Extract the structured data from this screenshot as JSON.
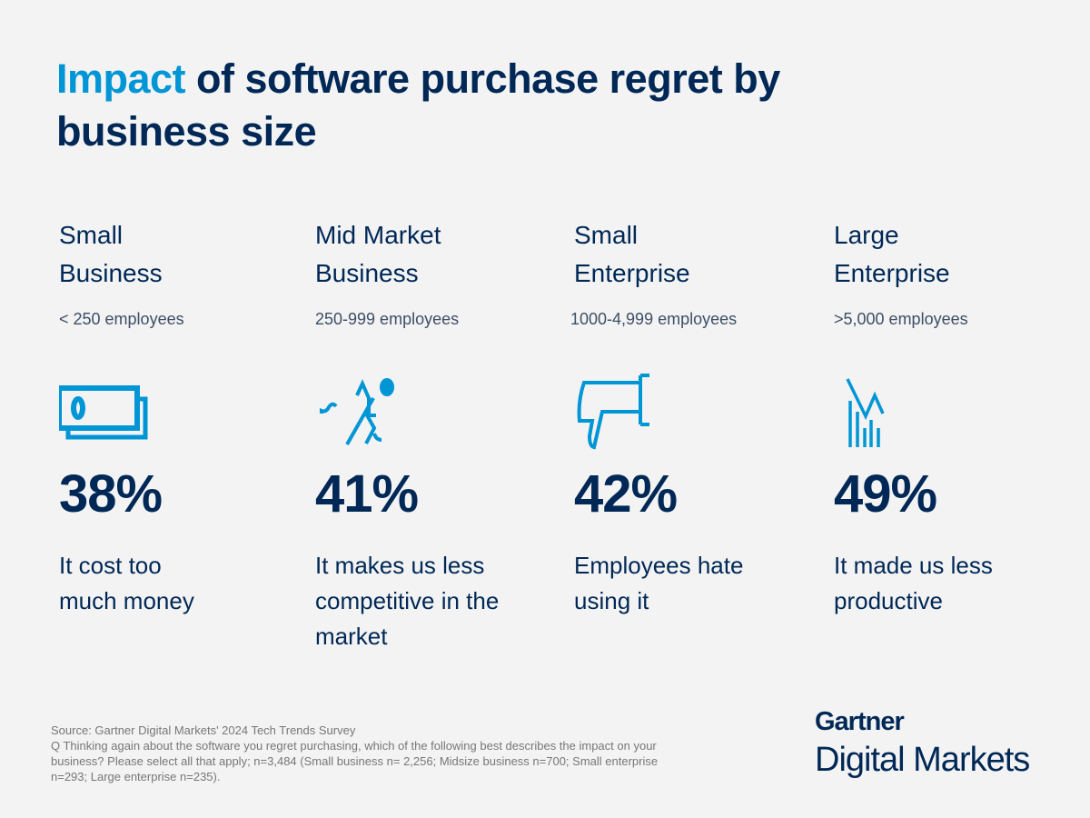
{
  "title": {
    "highlight": "Impact",
    "rest": " of software purchase regret by business size"
  },
  "colors": {
    "navy": "#002856",
    "accent": "#0096d6",
    "background": "#f3f3f3"
  },
  "columns": [
    {
      "head": "Small Business",
      "sub": "< 250 employees",
      "icon": "money-bills-icon",
      "percent": "38%",
      "desc": "It cost too much money"
    },
    {
      "head": "Mid Market Business",
      "sub": "250-999 employees",
      "icon": "running-person-icon",
      "percent": "41%",
      "desc": "It makes us less competitive in the market"
    },
    {
      "head": "Small Enterprise",
      "sub": "1000-4,999 employees",
      "icon": "thumbs-down-icon",
      "percent": "42%",
      "desc": "Employees hate using it"
    },
    {
      "head": "Large Enterprise",
      "sub": ">5,000 employees",
      "icon": "declining-chart-icon",
      "percent": "49%",
      "desc": "It made us less productive"
    }
  ],
  "footer": {
    "source": "Source: Gartner Digital Markets' 2024 Tech Trends Survey",
    "question": "Q Thinking again about the software you regret purchasing, which of the following best describes the impact on your business? Please select all that apply; n=3,484 (Small business n= 2,256; Midsize business n=700; Small enterprise n=293; Large enterprise n=235)."
  },
  "logo": {
    "brand": "Gartner",
    "product": "Digital Markets"
  }
}
